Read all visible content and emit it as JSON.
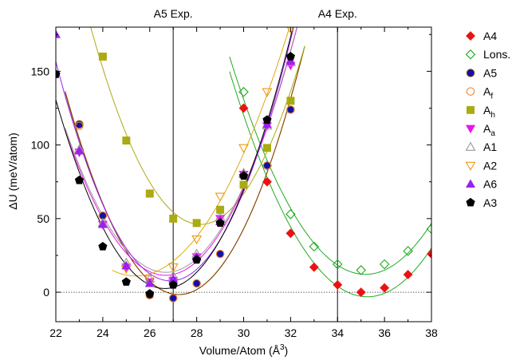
{
  "chart_data": {
    "type": "scatter",
    "xlabel": "Volume/Atom (Å",
    "xlabel_sup": "3",
    "xlabel_tail": ")",
    "ylabel": "ΔU (meV/atom)",
    "xlim": [
      22,
      38
    ],
    "ylim": [
      -20,
      180
    ],
    "xticks": [
      22,
      24,
      26,
      28,
      30,
      32,
      34,
      36,
      38
    ],
    "yticks": [
      0,
      50,
      100,
      150
    ],
    "zero_line": true,
    "legend_position": "right",
    "annotations": [
      {
        "text": "A5 Exp.",
        "x": 27
      },
      {
        "text": "A4 Exp.",
        "x": 34
      }
    ],
    "series": [
      {
        "name": "A4",
        "sub": "",
        "marker": "diamond",
        "filled": true,
        "color": "#ee1111",
        "line_color": "#22aa22",
        "x": [
          30,
          31,
          32,
          33,
          34,
          35,
          36,
          37,
          38
        ],
        "y": [
          125,
          75,
          40,
          17,
          5,
          0,
          3,
          12,
          26
        ]
      },
      {
        "name": "Lons.",
        "sub": "",
        "marker": "diamond",
        "filled": false,
        "color": "#22aa22",
        "line_color": "#22aa22",
        "x": [
          30,
          31,
          32,
          33,
          34,
          35,
          36,
          37,
          38
        ],
        "y": [
          136,
          86,
          53,
          31,
          19,
          15,
          19,
          28,
          43
        ]
      },
      {
        "name": "A5",
        "sub": "",
        "marker": "circle",
        "filled": true,
        "color": "#1111aa",
        "line_color": "#884400",
        "x": [
          23,
          24,
          26,
          27,
          28,
          29,
          31,
          32
        ],
        "y": [
          114,
          52,
          -2,
          -4,
          6,
          26,
          86,
          124
        ]
      },
      {
        "name": "A",
        "sub": "f",
        "marker": "circle",
        "filled": false,
        "color": "#ee8833",
        "line_color": "#884400",
        "x": [
          23,
          24,
          26,
          27,
          28,
          29,
          31,
          32
        ],
        "y": [
          113,
          52,
          -2,
          -4,
          6,
          26,
          86,
          124
        ]
      },
      {
        "name": "A",
        "sub": "h",
        "marker": "square",
        "filled": true,
        "color": "#aaaa11",
        "line_color": "#aaaa11",
        "x": [
          24,
          25,
          26,
          27,
          28,
          29,
          30,
          31,
          32
        ],
        "y": [
          160,
          103,
          67,
          50,
          47,
          56,
          73,
          98,
          130
        ]
      },
      {
        "name": "A",
        "sub": "a",
        "marker": "triangle-down",
        "filled": true,
        "color": "#ee11ee",
        "line_color": "#ee11ee",
        "x": [
          23,
          24,
          25,
          26,
          27,
          28,
          29,
          30,
          31,
          32
        ],
        "y": [
          95,
          46,
          17,
          7,
          8,
          24,
          50,
          80,
          113,
          154
        ]
      },
      {
        "name": "A1",
        "sub": "",
        "marker": "triangle-up",
        "filled": false,
        "color": "#999999",
        "line_color": "#999999",
        "x": [
          23,
          24,
          25,
          26,
          27,
          28,
          29,
          30,
          31,
          32
        ],
        "y": [
          97,
          47,
          20,
          9,
          11,
          26,
          51,
          81,
          113,
          156
        ]
      },
      {
        "name": "A2",
        "sub": "",
        "marker": "triangle-down",
        "filled": false,
        "color": "#ee9911",
        "line_color": "#ddaa11",
        "x": [
          25,
          26,
          27,
          28,
          29,
          30,
          31,
          32
        ],
        "y": [
          16,
          9,
          17,
          36,
          65,
          98,
          136,
          179
        ]
      },
      {
        "name": "A6",
        "sub": "",
        "marker": "triangle-up",
        "filled": true,
        "color": "#9922ee",
        "line_color": "#9922ee",
        "x": [
          22,
          23,
          24,
          25,
          26,
          27,
          28,
          29,
          30,
          31,
          32
        ],
        "y": [
          175,
          96,
          46,
          18,
          6,
          9,
          24,
          48,
          80,
          114,
          157
        ]
      },
      {
        "name": "A3",
        "sub": "",
        "marker": "pentagon",
        "filled": true,
        "color": "#000000",
        "line_color": "#000000",
        "x": [
          22,
          23,
          24,
          25,
          26,
          27,
          28,
          29,
          30,
          31,
          32
        ],
        "y": [
          148,
          76,
          31,
          7,
          -1,
          5,
          22,
          47,
          79,
          117,
          160
        ]
      }
    ]
  }
}
